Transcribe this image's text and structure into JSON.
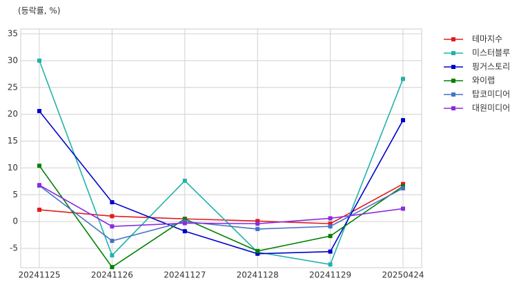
{
  "chart_data": {
    "type": "line",
    "subtitle": "(등락률, %)",
    "categories": [
      "20241125",
      "20241126",
      "20241127",
      "20241128",
      "20241129",
      "20250424"
    ],
    "series": [
      {
        "name": "테마지수",
        "color": "#e31a1c",
        "values": [
          2.2,
          1.0,
          0.5,
          0.1,
          -0.4,
          7.0
        ]
      },
      {
        "name": "미스터블루",
        "color": "#20b2aa",
        "values": [
          30.0,
          -6.3,
          7.6,
          -5.7,
          -8.0,
          26.6
        ]
      },
      {
        "name": "핑거스토리",
        "color": "#0000cd",
        "values": [
          20.6,
          3.6,
          -1.8,
          -6.0,
          -5.6,
          18.9
        ]
      },
      {
        "name": "와이랩",
        "color": "#008000",
        "values": [
          10.4,
          -8.5,
          0.5,
          -5.5,
          -2.7,
          6.6
        ]
      },
      {
        "name": "탑코미디어",
        "color": "#4472c4",
        "values": [
          6.7,
          -3.6,
          0.0,
          -1.4,
          -0.9,
          6.2
        ]
      },
      {
        "name": "대원미디어",
        "color": "#8a2be2",
        "values": [
          6.8,
          -0.9,
          -0.3,
          -0.4,
          0.6,
          2.4
        ]
      }
    ],
    "ylim": [
      -8.6,
      35.9
    ],
    "yticks": [
      -5,
      0,
      5,
      10,
      15,
      20,
      25,
      30,
      35
    ],
    "grid": true,
    "legend": "outside-right"
  }
}
